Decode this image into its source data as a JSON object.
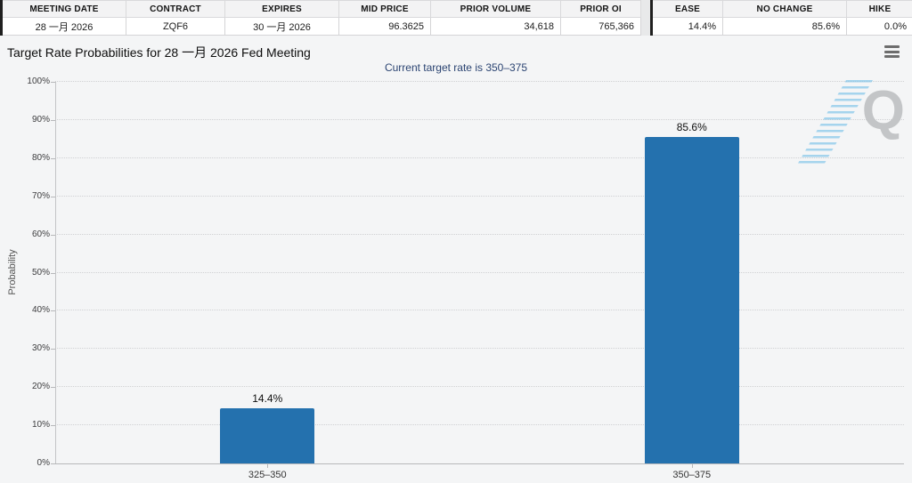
{
  "tables": {
    "contract": {
      "headers": [
        "MEETING DATE",
        "CONTRACT",
        "EXPIRES",
        "MID PRICE",
        "PRIOR VOLUME",
        "PRIOR OI"
      ],
      "row": [
        "28 一月 2026",
        "ZQF6",
        "30 一月 2026",
        "96.3625",
        "34,618",
        "765,366"
      ]
    },
    "probabilities": {
      "headers": [
        "EASE",
        "NO CHANGE",
        "HIKE"
      ],
      "row": [
        "14.4%",
        "85.6%",
        "0.0%"
      ]
    }
  },
  "chart": {
    "title": "Target Rate Probabilities for 28 一月 2026 Fed Meeting",
    "subtitle": "Current target rate is 350–375",
    "watermark_letter": "Q"
  },
  "chart_data": {
    "type": "bar",
    "title": "Target Rate Probabilities for 28 一月 2026 Fed Meeting",
    "subtitle": "Current target rate is 350–375",
    "categories": [
      "325–350",
      "350–375"
    ],
    "values": [
      14.4,
      85.6
    ],
    "value_labels": [
      "14.4%",
      "85.6%"
    ],
    "xlabel": "",
    "ylabel": "Probability",
    "ylim": [
      0,
      100
    ],
    "ytick_step": 10,
    "ytick_format": "percent",
    "grid": "dotted-horizontal",
    "legend": "none",
    "bar_color": "#2471ae"
  },
  "colors": {
    "bar": "#2471ae",
    "subtitle_text": "#2b4472",
    "panel_bg": "#f4f5f6",
    "table_header_bg": "#f3f3f4",
    "table_left_border": "#1f1f1f"
  }
}
